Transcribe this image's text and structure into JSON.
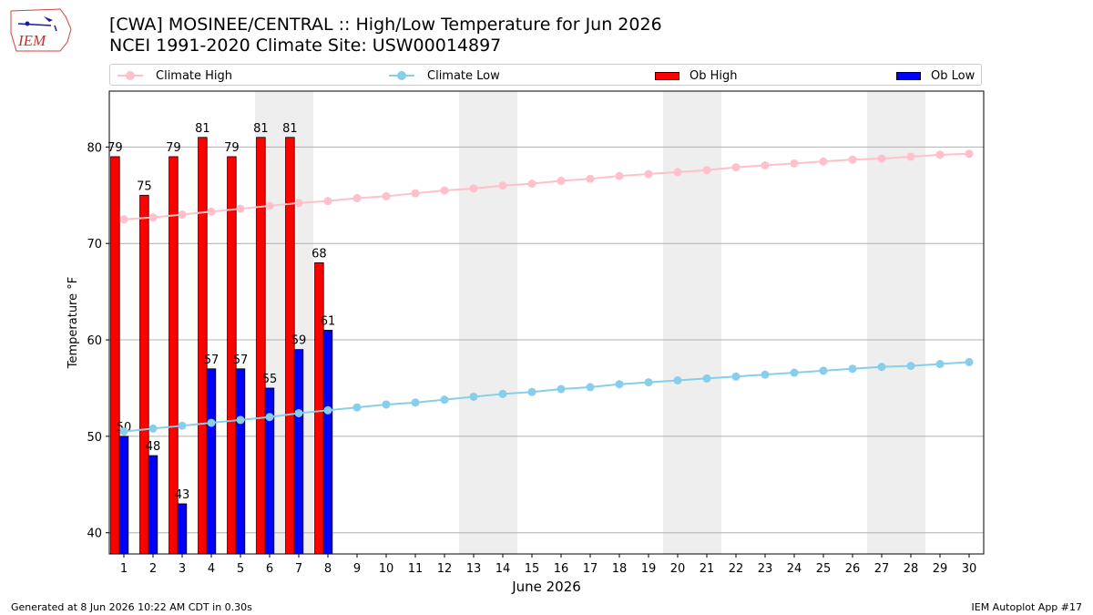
{
  "header": {
    "title_line1": "[CWA] MOSINEE/CENTRAL :: High/Low Temperature for Jun 2026",
    "title_line2": "NCEI 1991-2020 Climate Site: USW00014897",
    "logo_text": "IEM"
  },
  "legend": {
    "items": [
      {
        "label": "Climate High",
        "kind": "line",
        "color": "#ffc0cb"
      },
      {
        "label": "Climate Low",
        "kind": "line",
        "color": "#87ceeb"
      },
      {
        "label": "Ob High",
        "kind": "bar",
        "color": "#ff0000"
      },
      {
        "label": "Ob Low",
        "kind": "bar",
        "color": "#0000ff"
      }
    ]
  },
  "footer": {
    "left": "Generated at 8 Jun 2026 10:22 AM CDT in 0.30s",
    "right": "IEM Autoplot App #17"
  },
  "chart_data": {
    "type": "bar",
    "title": "[CWA] MOSINEE/CENTRAL :: High/Low Temperature for Jun 2026",
    "subtitle": "NCEI 1991-2020 Climate Site: USW00014897",
    "xlabel": "June 2026",
    "ylabel": "Temperature °F",
    "ylim": [
      37.8,
      85.8
    ],
    "yticks": [
      40,
      50,
      60,
      70,
      80
    ],
    "xticks": [
      1,
      2,
      3,
      4,
      5,
      6,
      7,
      8,
      9,
      10,
      11,
      12,
      13,
      14,
      15,
      16,
      17,
      18,
      19,
      20,
      21,
      22,
      23,
      24,
      25,
      26,
      27,
      28,
      29,
      30
    ],
    "grid": "horizontal",
    "legend_position": "top",
    "weekend_shading": [
      [
        6,
        7
      ],
      [
        13,
        14
      ],
      [
        20,
        21
      ],
      [
        27,
        28
      ]
    ],
    "series": [
      {
        "name": "Ob High",
        "kind": "bar",
        "color": "#ff0000",
        "x": [
          1,
          2,
          3,
          4,
          5,
          6,
          7,
          8
        ],
        "values": [
          79,
          75,
          79,
          81,
          79,
          81,
          81,
          68
        ]
      },
      {
        "name": "Ob Low",
        "kind": "bar",
        "color": "#0000ff",
        "x": [
          1,
          2,
          3,
          4,
          5,
          6,
          7,
          8
        ],
        "values": [
          50,
          48,
          43,
          57,
          57,
          55,
          59,
          61
        ]
      },
      {
        "name": "Climate High",
        "kind": "line",
        "color": "#ffc0cb",
        "x": [
          1,
          2,
          3,
          4,
          5,
          6,
          7,
          8,
          9,
          10,
          11,
          12,
          13,
          14,
          15,
          16,
          17,
          18,
          19,
          20,
          21,
          22,
          23,
          24,
          25,
          26,
          27,
          28,
          29,
          30
        ],
        "values": [
          72.5,
          72.7,
          73.0,
          73.3,
          73.6,
          73.9,
          74.2,
          74.4,
          74.7,
          74.9,
          75.2,
          75.5,
          75.7,
          76.0,
          76.2,
          76.5,
          76.7,
          77.0,
          77.2,
          77.4,
          77.6,
          77.9,
          78.1,
          78.3,
          78.5,
          78.7,
          78.8,
          79.0,
          79.2,
          79.3
        ]
      },
      {
        "name": "Climate Low",
        "kind": "line",
        "color": "#87ceeb",
        "x": [
          1,
          2,
          3,
          4,
          5,
          6,
          7,
          8,
          9,
          10,
          11,
          12,
          13,
          14,
          15,
          16,
          17,
          18,
          19,
          20,
          21,
          22,
          23,
          24,
          25,
          26,
          27,
          28,
          29,
          30
        ],
        "values": [
          50.5,
          50.8,
          51.1,
          51.4,
          51.7,
          52.0,
          52.4,
          52.7,
          53.0,
          53.3,
          53.5,
          53.8,
          54.1,
          54.4,
          54.6,
          54.9,
          55.1,
          55.4,
          55.6,
          55.8,
          56.0,
          56.2,
          56.4,
          56.6,
          56.8,
          57.0,
          57.2,
          57.3,
          57.5,
          57.7
        ]
      }
    ]
  }
}
